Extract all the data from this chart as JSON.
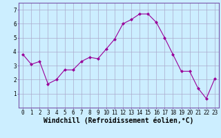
{
  "x": [
    0,
    1,
    2,
    3,
    4,
    5,
    6,
    7,
    8,
    9,
    10,
    11,
    12,
    13,
    14,
    15,
    16,
    17,
    18,
    19,
    20,
    21,
    22,
    23
  ],
  "y": [
    3.8,
    3.1,
    3.3,
    1.7,
    2.0,
    2.7,
    2.7,
    3.3,
    3.6,
    3.5,
    4.2,
    4.9,
    6.0,
    6.3,
    6.7,
    6.7,
    6.1,
    5.0,
    3.8,
    2.6,
    2.6,
    1.4,
    0.65,
    2.05
  ],
  "line_color": "#990099",
  "marker": "D",
  "marker_size": 2,
  "bg_color": "#cceeff",
  "grid_color": "#aaaacc",
  "xlabel": "Windchill (Refroidissement éolien,°C)",
  "xlabel_fontsize": 7,
  "ylim": [
    0,
    7.5
  ],
  "xlim": [
    -0.5,
    23.5
  ],
  "yticks": [
    1,
    2,
    3,
    4,
    5,
    6,
    7
  ],
  "xticks": [
    0,
    1,
    2,
    3,
    4,
    5,
    6,
    7,
    8,
    9,
    10,
    11,
    12,
    13,
    14,
    15,
    16,
    17,
    18,
    19,
    20,
    21,
    22,
    23
  ],
  "tick_fontsize": 5.5
}
